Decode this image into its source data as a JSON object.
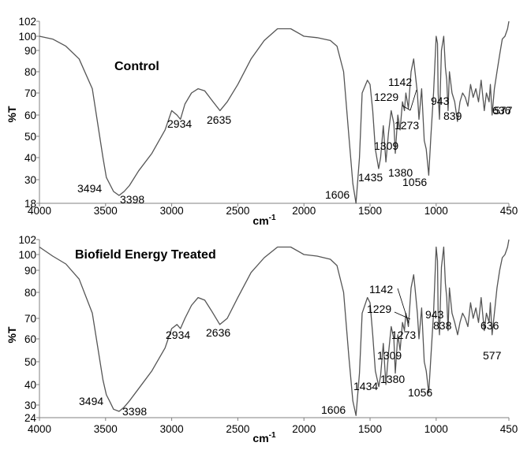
{
  "chart_data": [
    {
      "type": "line",
      "title": "Control",
      "xlabel": "cm",
      "xlabel_sup": "-1",
      "ylabel": "%T",
      "xlim": [
        4000,
        450
      ],
      "ylim": [
        18,
        102
      ],
      "xticks": [
        "4000",
        "3500",
        "3000",
        "2500",
        "2000",
        "1500",
        "1000",
        "450"
      ],
      "yticks": [
        "18",
        "30",
        "40",
        "50",
        "60",
        "70",
        "80",
        "90",
        "100",
        "102"
      ],
      "grid": false,
      "series": [
        {
          "x": [
            4000,
            3900,
            3800,
            3700,
            3600,
            3520,
            3494,
            3470,
            3440,
            3398,
            3360,
            3320,
            3250,
            3150,
            3050,
            3000,
            2960,
            2934,
            2900,
            2850,
            2800,
            2750,
            2700,
            2635,
            2580,
            2500,
            2400,
            2300,
            2200,
            2100,
            2000,
            1900,
            1800,
            1750,
            1700,
            1660,
            1630,
            1606,
            1580,
            1560,
            1520,
            1500,
            1480,
            1460,
            1435,
            1420,
            1400,
            1380,
            1360,
            1340,
            1320,
            1309,
            1290,
            1273,
            1255,
            1240,
            1229,
            1210,
            1190,
            1170,
            1160,
            1142,
            1130,
            1110,
            1090,
            1075,
            1056,
            1040,
            1020,
            1000,
            990,
            985,
            975,
            960,
            943,
            930,
            920,
            910,
            900,
            880,
            860,
            839,
            820,
            800,
            780,
            760,
            740,
            720,
            700,
            680,
            660,
            636,
            620,
            600,
            590,
            577,
            560,
            540,
            520,
            500,
            480,
            460,
            450
          ],
          "values": [
            100,
            98,
            93,
            86,
            72,
            40,
            31,
            28,
            24,
            22,
            24,
            27,
            34,
            42,
            53,
            62,
            60,
            58,
            65,
            70,
            72,
            71,
            67,
            62,
            66,
            74,
            86,
            97,
            101,
            101,
            100,
            99,
            97,
            93,
            80,
            50,
            28,
            18,
            40,
            70,
            76,
            74,
            62,
            44,
            35,
            40,
            55,
            38,
            52,
            62,
            56,
            42,
            60,
            53,
            66,
            62,
            70,
            63,
            80,
            86,
            80,
            70,
            58,
            72,
            48,
            44,
            32,
            50,
            70,
            100,
            95,
            70,
            58,
            90,
            100,
            82,
            76,
            62,
            80,
            70,
            66,
            57,
            66,
            70,
            68,
            64,
            74,
            68,
            72,
            66,
            76,
            62,
            70,
            66,
            74,
            60,
            72,
            80,
            88,
            98,
            100,
            101,
            102
          ]
        }
      ],
      "peaks": [
        {
          "x": 3494,
          "y": 31,
          "label": "3494"
        },
        {
          "x": 3398,
          "y": 22,
          "label": "3398"
        },
        {
          "x": 2934,
          "y": 58,
          "label": "2934"
        },
        {
          "x": 2635,
          "y": 62,
          "label": "2635"
        },
        {
          "x": 1606,
          "y": 18,
          "label": "1606"
        },
        {
          "x": 1435,
          "y": 35,
          "label": "1435"
        },
        {
          "x": 1380,
          "y": 38,
          "label": "1380"
        },
        {
          "x": 1309,
          "y": 42,
          "label": "1309"
        },
        {
          "x": 1273,
          "y": 53,
          "label": "1273"
        },
        {
          "x": 1229,
          "y": 70,
          "label": "1229"
        },
        {
          "x": 1142,
          "y": 70,
          "label": "1142"
        },
        {
          "x": 1056,
          "y": 32,
          "label": "1056"
        },
        {
          "x": 943,
          "y": 100,
          "label": "943"
        },
        {
          "x": 839,
          "y": 57,
          "label": "839"
        },
        {
          "x": 636,
          "y": 62,
          "label": "636"
        },
        {
          "x": 577,
          "y": 60,
          "label": "577"
        }
      ]
    },
    {
      "type": "line",
      "title": "Biofield Energy Treated",
      "xlabel": "cm",
      "xlabel_sup": "-1",
      "ylabel": "%T",
      "xlim": [
        4000,
        450
      ],
      "ylim": [
        24,
        102
      ],
      "xticks": [
        "4000",
        "3500",
        "3000",
        "2500",
        "2000",
        "1500",
        "1000",
        "450"
      ],
      "yticks": [
        "24",
        "30",
        "40",
        "50",
        "60",
        "70",
        "80",
        "90",
        "100",
        "102"
      ],
      "grid": false,
      "series": [
        {
          "x": [
            4000,
            3900,
            3800,
            3700,
            3600,
            3520,
            3494,
            3470,
            3440,
            3398,
            3360,
            3320,
            3250,
            3150,
            3050,
            3000,
            2960,
            2934,
            2900,
            2850,
            2800,
            2750,
            2700,
            2636,
            2580,
            2500,
            2400,
            2300,
            2200,
            2100,
            2000,
            1900,
            1800,
            1750,
            1700,
            1660,
            1630,
            1606,
            1580,
            1560,
            1520,
            1500,
            1480,
            1460,
            1434,
            1420,
            1400,
            1380,
            1360,
            1340,
            1320,
            1309,
            1290,
            1273,
            1255,
            1240,
            1229,
            1210,
            1190,
            1170,
            1160,
            1142,
            1130,
            1110,
            1090,
            1075,
            1056,
            1040,
            1020,
            1000,
            990,
            985,
            975,
            960,
            943,
            930,
            920,
            910,
            900,
            880,
            860,
            838,
            820,
            800,
            780,
            760,
            740,
            720,
            700,
            680,
            660,
            636,
            620,
            600,
            590,
            577,
            560,
            540,
            520,
            500,
            480,
            460,
            450
          ],
          "values": [
            101,
            99,
            94,
            86,
            72,
            42,
            35,
            32,
            28,
            27,
            29,
            32,
            38,
            46,
            56,
            65,
            67,
            65,
            70,
            75,
            78,
            77,
            73,
            67,
            70,
            78,
            89,
            98,
            101,
            101,
            100,
            99,
            97,
            93,
            80,
            52,
            32,
            25,
            45,
            72,
            78,
            76,
            62,
            46,
            39,
            44,
            58,
            40,
            54,
            66,
            60,
            45,
            62,
            55,
            68,
            64,
            72,
            66,
            82,
            88,
            82,
            72,
            60,
            74,
            50,
            46,
            36,
            52,
            72,
            101,
            96,
            72,
            62,
            92,
            101,
            84,
            78,
            64,
            82,
            72,
            68,
            62,
            68,
            72,
            70,
            66,
            76,
            70,
            74,
            68,
            78,
            64,
            72,
            68,
            76,
            62,
            72,
            82,
            90,
            98,
            100,
            101,
            102
          ]
        }
      ],
      "peaks": [
        {
          "x": 3494,
          "y": 35,
          "label": "3494"
        },
        {
          "x": 3398,
          "y": 27,
          "label": "3398"
        },
        {
          "x": 2934,
          "y": 65,
          "label": "2934"
        },
        {
          "x": 2636,
          "y": 67,
          "label": "2636"
        },
        {
          "x": 1606,
          "y": 25,
          "label": "1606"
        },
        {
          "x": 1434,
          "y": 39,
          "label": "1434"
        },
        {
          "x": 1380,
          "y": 40,
          "label": "1380"
        },
        {
          "x": 1309,
          "y": 45,
          "label": "1309"
        },
        {
          "x": 1273,
          "y": 55,
          "label": "1273"
        },
        {
          "x": 1229,
          "y": 72,
          "label": "1229"
        },
        {
          "x": 1142,
          "y": 72,
          "label": "1142"
        },
        {
          "x": 1056,
          "y": 36,
          "label": "1056"
        },
        {
          "x": 943,
          "y": 101,
          "label": "943"
        },
        {
          "x": 838,
          "y": 62,
          "label": "838"
        },
        {
          "x": 636,
          "y": 64,
          "label": "636"
        },
        {
          "x": 577,
          "y": 62,
          "label": "577"
        }
      ]
    }
  ]
}
